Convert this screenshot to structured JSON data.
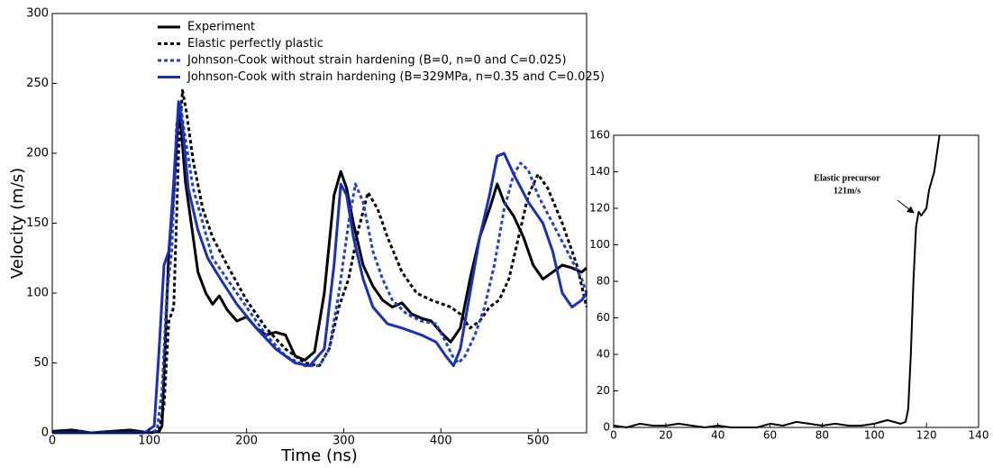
{
  "chart_data": [
    {
      "type": "line",
      "xlabel": "Time (ns)",
      "ylabel": "Velocity (m/s)",
      "xlim": [
        0,
        550
      ],
      "xticks": [
        0,
        100,
        200,
        300,
        400,
        500
      ],
      "ylim": [
        0,
        300
      ],
      "yticks": [
        0,
        50,
        100,
        150,
        200,
        250,
        300
      ],
      "grid": false,
      "legend": "upper center",
      "series": [
        {
          "name": "Experiment",
          "color": "#000000",
          "linestyle": "solid",
          "x": [
            0,
            20,
            40,
            60,
            80,
            100,
            110,
            113,
            116,
            120,
            125,
            130,
            133,
            137,
            143,
            150,
            158,
            165,
            172,
            180,
            190,
            200,
            210,
            220,
            230,
            240,
            250,
            260,
            270,
            280,
            290,
            297,
            303,
            310,
            320,
            330,
            340,
            350,
            360,
            370,
            380,
            390,
            400,
            410,
            420,
            430,
            440,
            450,
            458,
            465,
            475,
            485,
            495,
            505,
            515,
            525,
            535,
            545,
            550
          ],
          "values": [
            1,
            2,
            0,
            1,
            2,
            0,
            1,
            5,
            60,
            130,
            170,
            230,
            215,
            180,
            150,
            115,
            100,
            92,
            98,
            88,
            80,
            83,
            75,
            70,
            72,
            70,
            55,
            52,
            58,
            100,
            170,
            187,
            175,
            150,
            120,
            105,
            95,
            90,
            93,
            85,
            82,
            80,
            72,
            65,
            75,
            110,
            140,
            160,
            178,
            165,
            155,
            140,
            120,
            110,
            115,
            120,
            118,
            115,
            118
          ]
        },
        {
          "name": "Elastic perfectly plastic",
          "color": "#000000",
          "linestyle": "dotted",
          "x": [
            0,
            100,
            110,
            115,
            120,
            125,
            130,
            134,
            138,
            145,
            155,
            165,
            180,
            200,
            220,
            240,
            260,
            275,
            285,
            295,
            305,
            315,
            325,
            335,
            345,
            360,
            375,
            390,
            410,
            420,
            430,
            440,
            450,
            460,
            470,
            480,
            490,
            500,
            510,
            525,
            540,
            550
          ],
          "values": [
            0,
            0,
            2,
            20,
            80,
            90,
            200,
            245,
            230,
            195,
            160,
            140,
            120,
            95,
            75,
            60,
            50,
            48,
            60,
            90,
            110,
            145,
            172,
            160,
            140,
            115,
            100,
            95,
            90,
            85,
            75,
            80,
            90,
            95,
            110,
            140,
            170,
            185,
            175,
            150,
            120,
            90
          ]
        },
        {
          "name": "Johnson-Cook without strain hardening (B=0, n=0 and C=0.025)",
          "color": "#1f3fd6",
          "linestyle": "dotted",
          "x": [
            0,
            100,
            108,
            113,
            118,
            123,
            128,
            132,
            136,
            145,
            155,
            165,
            180,
            200,
            220,
            240,
            260,
            275,
            285,
            295,
            305,
            312,
            320,
            330,
            340,
            350,
            365,
            380,
            395,
            405,
            412,
            418,
            425,
            435,
            445,
            455,
            465,
            475,
            482,
            490,
            500,
            515,
            530,
            545,
            550
          ],
          "values": [
            0,
            0,
            2,
            30,
            100,
            130,
            220,
            235,
            215,
            175,
            150,
            125,
            110,
            90,
            70,
            55,
            48,
            48,
            60,
            100,
            150,
            178,
            165,
            130,
            110,
            95,
            85,
            80,
            78,
            65,
            55,
            50,
            55,
            70,
            90,
            120,
            160,
            185,
            193,
            188,
            170,
            150,
            130,
            110,
            100
          ]
        },
        {
          "name": "Johnson-Cook with strain hardening (B=329MPa, n=0.35 and C=0.025)",
          "color": "#1a2fc0",
          "linestyle": "solid",
          "x": [
            0,
            95,
            105,
            110,
            115,
            120,
            125,
            130,
            134,
            140,
            150,
            160,
            175,
            190,
            210,
            230,
            250,
            265,
            280,
            290,
            297,
            303,
            310,
            320,
            330,
            345,
            360,
            380,
            395,
            405,
            413,
            420,
            430,
            440,
            450,
            458,
            465,
            475,
            490,
            505,
            515,
            525,
            535,
            545,
            550
          ],
          "values": [
            0,
            0,
            5,
            60,
            120,
            130,
            180,
            237,
            220,
            175,
            145,
            125,
            108,
            92,
            75,
            60,
            50,
            48,
            60,
            120,
            178,
            170,
            140,
            110,
            90,
            78,
            75,
            70,
            65,
            55,
            48,
            60,
            100,
            140,
            170,
            198,
            200,
            185,
            165,
            150,
            130,
            100,
            90,
            95,
            100
          ]
        }
      ]
    },
    {
      "type": "line",
      "xlim": [
        0,
        140
      ],
      "xticks": [
        0,
        20,
        40,
        60,
        80,
        100,
        120,
        140
      ],
      "ylim": [
        0,
        160
      ],
      "yticks": [
        0,
        20,
        40,
        60,
        80,
        100,
        120,
        140,
        160
      ],
      "grid": false,
      "annotation": [
        "Elastic precursor",
        "121m/s"
      ],
      "series": [
        {
          "color": "#000000",
          "linestyle": "solid",
          "x": [
            0,
            5,
            10,
            15,
            20,
            25,
            30,
            35,
            40,
            45,
            55,
            60,
            65,
            70,
            75,
            80,
            85,
            90,
            95,
            100,
            105,
            110,
            112,
            113,
            114,
            115,
            116,
            117,
            118,
            120,
            121,
            123,
            124,
            125
          ],
          "values": [
            1,
            0,
            2,
            1,
            1,
            2,
            1,
            0,
            1,
            0,
            0,
            2,
            1,
            3,
            2,
            1,
            2,
            1,
            1,
            2,
            4,
            2,
            3,
            10,
            40,
            80,
            110,
            118,
            116,
            120,
            130,
            140,
            150,
            160
          ]
        }
      ]
    }
  ]
}
